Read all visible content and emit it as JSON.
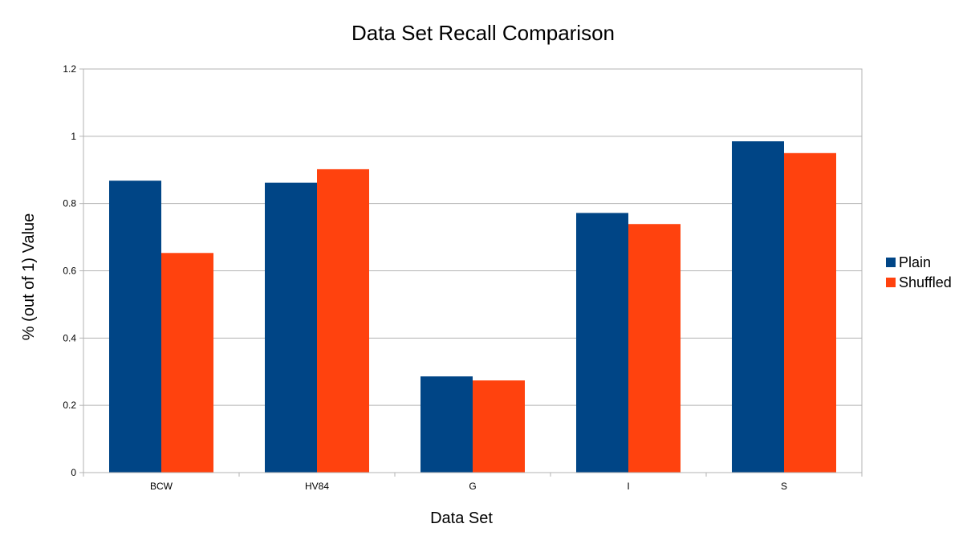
{
  "chart_data": {
    "type": "bar",
    "title": "Data Set Recall Comparison",
    "xlabel": "Data Set",
    "ylabel": "% (out of 1) Value",
    "categories": [
      "BCW",
      "HV84",
      "G",
      "I",
      "S"
    ],
    "series": [
      {
        "name": "Plain",
        "color": "#004586",
        "values": [
          0.868,
          0.862,
          0.286,
          0.772,
          0.985
        ]
      },
      {
        "name": "Shuffled",
        "color": "#ff420e",
        "values": [
          0.653,
          0.902,
          0.274,
          0.739,
          0.95
        ]
      }
    ],
    "ylim": [
      0,
      1.2
    ],
    "yticks": [
      0,
      0.2,
      0.4,
      0.6,
      0.8,
      1,
      1.2
    ],
    "grid": true,
    "legend_position": "right"
  }
}
